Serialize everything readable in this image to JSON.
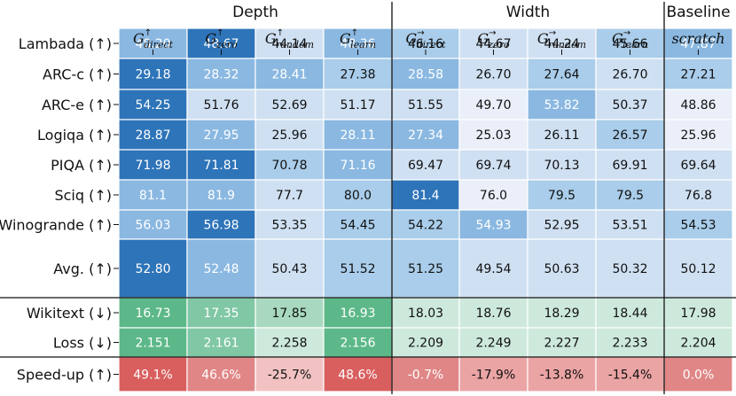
{
  "chart_data": {
    "type": "heatmap",
    "column_groups": [
      {
        "name": "Depth",
        "span": 4
      },
      {
        "name": "Width",
        "span": 4
      },
      {
        "name": "Baseline",
        "span": 1
      }
    ],
    "columns": [
      {
        "symbol": "G",
        "sup": "↑",
        "sub": "direct"
      },
      {
        "symbol": "G",
        "sup": "↑",
        "sub": "zero"
      },
      {
        "symbol": "G",
        "sup": "↑",
        "sub": "random"
      },
      {
        "symbol": "G",
        "sup": "↑",
        "sub": "learn"
      },
      {
        "symbol": "G",
        "sup": "→",
        "sub": "direct"
      },
      {
        "symbol": "G",
        "sup": "→",
        "sub": "zero"
      },
      {
        "symbol": "G",
        "sup": "→",
        "sub": "random"
      },
      {
        "symbol": "G",
        "sup": "→",
        "sub": "learn"
      },
      {
        "symbol": "scratch",
        "sup": "",
        "sub": ""
      }
    ],
    "sections": [
      {
        "color": "blue",
        "rows": [
          {
            "label": "Lambada (↑)",
            "cells": [
              "48.20",
              "48.67",
              "44.14",
              "48.36",
              "46.16",
              "44.67",
              "44.24",
              "45.66",
              "47.87"
            ],
            "levels": [
              3,
              4,
              1,
              3,
              2,
              1,
              1,
              2,
              3
            ]
          },
          {
            "label": "ARC-c (↑)",
            "cells": [
              "29.18",
              "28.32",
              "28.41",
              "27.38",
              "28.58",
              "26.70",
              "27.64",
              "26.70",
              "27.21"
            ],
            "levels": [
              4,
              3,
              3,
              2,
              3,
              1,
              2,
              1,
              2
            ]
          },
          {
            "label": "ARC-e (↑)",
            "cells": [
              "54.25",
              "51.76",
              "52.69",
              "51.17",
              "51.55",
              "49.70",
              "53.82",
              "50.37",
              "48.86"
            ],
            "levels": [
              4,
              1,
              1,
              1,
              1,
              0,
              3,
              1,
              0
            ]
          },
          {
            "label": "Logiqa (↑)",
            "cells": [
              "28.87",
              "27.95",
              "25.96",
              "28.11",
              "27.34",
              "25.03",
              "26.11",
              "26.57",
              "25.96"
            ],
            "levels": [
              4,
              3,
              1,
              3,
              3,
              0,
              1,
              2,
              0
            ]
          },
          {
            "label": "PIQA (↑)",
            "cells": [
              "71.98",
              "71.81",
              "70.78",
              "71.16",
              "69.47",
              "69.74",
              "70.13",
              "69.91",
              "69.64"
            ],
            "levels": [
              4,
              4,
              2,
              3,
              1,
              1,
              1,
              1,
              1
            ]
          },
          {
            "label": "Sciq (↑)",
            "cells": [
              "81.1",
              "81.9",
              "77.7",
              "80.0",
              "81.4",
              "76.0",
              "79.5",
              "79.5",
              "76.8"
            ],
            "levels": [
              3,
              3,
              1,
              2,
              4,
              0,
              2,
              2,
              1
            ]
          },
          {
            "label": "Winogrande (↑)",
            "cells": [
              "56.03",
              "56.98",
              "53.35",
              "54.45",
              "54.22",
              "54.93",
              "52.95",
              "53.51",
              "54.53"
            ],
            "levels": [
              3,
              4,
              1,
              2,
              2,
              3,
              1,
              1,
              2
            ]
          },
          {
            "label": "Avg. (↑)",
            "cells": [
              "52.80",
              "52.48",
              "50.43",
              "51.52",
              "51.25",
              "49.54",
              "50.63",
              "50.32",
              "50.12"
            ],
            "levels": [
              4,
              3,
              1,
              2,
              2,
              1,
              1,
              1,
              1
            ]
          }
        ]
      },
      {
        "color": "green",
        "rows": [
          {
            "label": "Wikitext (↓)",
            "cells": [
              "16.73",
              "17.35",
              "17.85",
              "16.93",
              "18.03",
              "18.76",
              "18.29",
              "18.44",
              "17.98"
            ],
            "levels": [
              4,
              3,
              2,
              4,
              1,
              1,
              1,
              1,
              1
            ]
          },
          {
            "label": "Loss (↓)",
            "cells": [
              "2.151",
              "2.161",
              "2.258",
              "2.156",
              "2.209",
              "2.249",
              "2.227",
              "2.233",
              "2.204"
            ],
            "levels": [
              4,
              3,
              1,
              4,
              1,
              1,
              1,
              1,
              1
            ]
          }
        ]
      },
      {
        "color": "red",
        "rows": [
          {
            "label": "Speed-up (↑)",
            "cells": [
              "49.1%",
              "46.6%",
              "-25.7%",
              "48.6%",
              "-0.7%",
              "-17.9%",
              "-13.8%",
              "-15.4%",
              "0.0%"
            ],
            "levels": [
              4,
              3,
              1,
              4,
              3,
              2,
              2,
              2,
              3
            ]
          }
        ]
      }
    ],
    "palette": {
      "blue": [
        "#eaeff9",
        "#cfe0f2",
        "#a9cdea",
        "#8ab8e1",
        "#2e74b9"
      ],
      "green": [
        "#e4f3ec",
        "#cde9dc",
        "#a8d9c0",
        "#80c7a5",
        "#5cb888"
      ],
      "red": [
        "#f8dede",
        "#f2c2c2",
        "#eba4a4",
        "#e08686",
        "#d95f5f"
      ]
    },
    "white_text_min_level": 3
  }
}
